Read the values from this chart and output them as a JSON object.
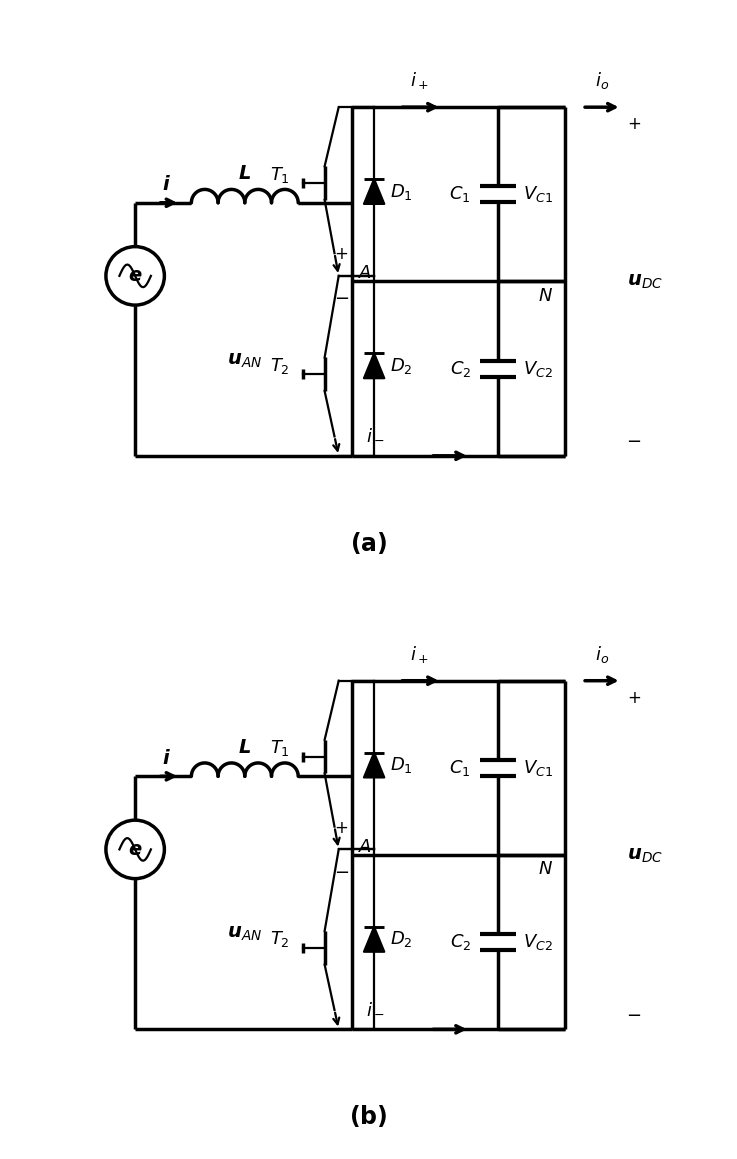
{
  "fig_width": 7.37,
  "fig_height": 11.59,
  "lw": 2.5,
  "lw2": 1.6,
  "col": "black"
}
